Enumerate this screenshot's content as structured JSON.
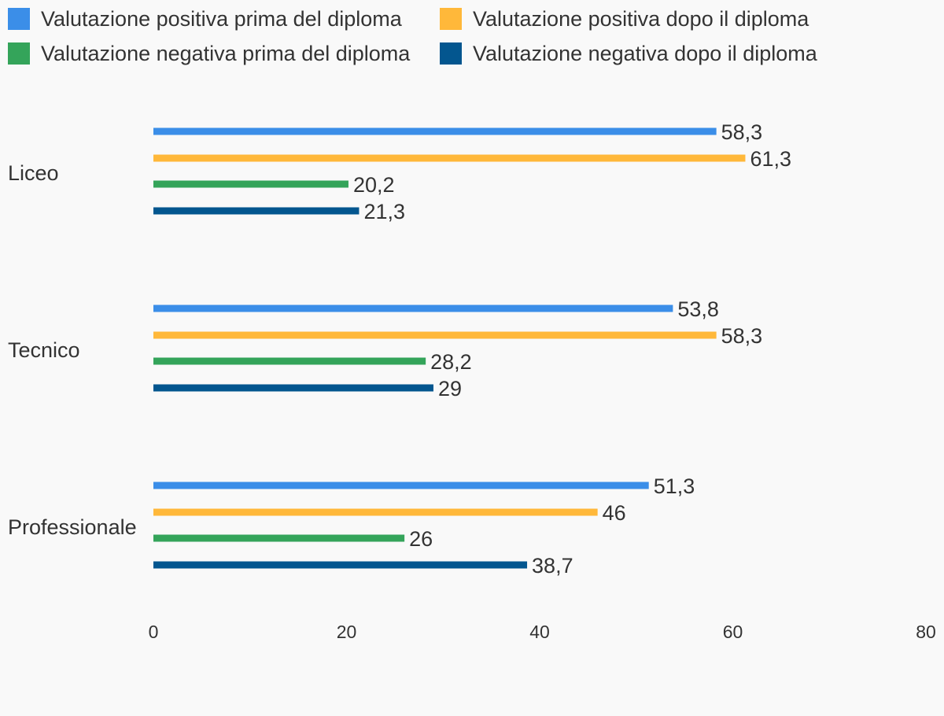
{
  "chart_data": {
    "type": "bar",
    "orientation": "horizontal",
    "categories": [
      "Liceo",
      "Tecnico",
      "Professionale"
    ],
    "series": [
      {
        "name": "Valutazione positiva prima del diploma",
        "color": "#3b8ee8",
        "values": [
          58.3,
          53.8,
          51.3
        ],
        "labels": [
          "58,3",
          "53,8",
          "51,3"
        ]
      },
      {
        "name": "Valutazione positiva dopo il diploma",
        "color": "#ffb83a",
        "values": [
          61.3,
          58.3,
          46
        ],
        "labels": [
          "61,3",
          "58,3",
          "46"
        ]
      },
      {
        "name": "Valutazione negativa prima del diploma",
        "color": "#34a45a",
        "values": [
          20.2,
          28.2,
          26
        ],
        "labels": [
          "20,2",
          "28,2",
          "26"
        ]
      },
      {
        "name": "Valutazione negativa dopo il diploma",
        "color": "#03568f",
        "values": [
          21.3,
          29,
          38.7
        ],
        "labels": [
          "21,3",
          "29",
          "38,7"
        ]
      }
    ],
    "xlim": [
      0,
      80
    ],
    "xticks": [
      0,
      20,
      40,
      60,
      80
    ],
    "xtick_labels": [
      "0",
      "20",
      "40",
      "60",
      "80"
    ],
    "legend": "top-left",
    "grid": false,
    "title": "",
    "xlabel": "",
    "ylabel": ""
  }
}
